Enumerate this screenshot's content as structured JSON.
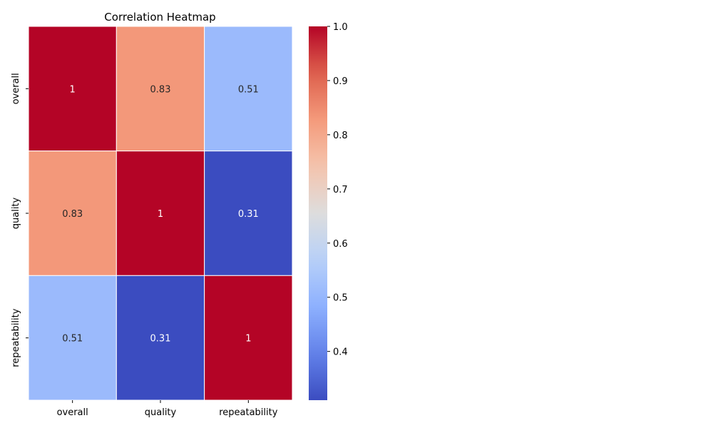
{
  "chart_data": {
    "type": "heatmap",
    "title": "Correlation Heatmap",
    "xlabel": "",
    "ylabel": "",
    "rows": [
      "overall",
      "quality",
      "repeatability"
    ],
    "columns": [
      "overall",
      "quality",
      "repeatability"
    ],
    "values": [
      [
        1,
        0.83,
        0.51
      ],
      [
        0.83,
        1,
        0.31
      ],
      [
        0.51,
        0.31,
        1
      ]
    ],
    "cell_labels": [
      [
        "1",
        "0.83",
        "0.51"
      ],
      [
        "0.83",
        "1",
        "0.31"
      ],
      [
        "0.51",
        "0.31",
        "1"
      ]
    ],
    "colormap": "coolwarm",
    "colorbar": {
      "range": [
        0.31,
        1.0
      ],
      "ticks": [
        0.4,
        0.5,
        0.6,
        0.7,
        0.8,
        0.9,
        1.0
      ],
      "tick_labels": [
        "0.4",
        "0.5",
        "0.6",
        "0.7",
        "0.8",
        "0.9",
        "1.0"
      ]
    },
    "grid": false,
    "cell_border_color": "#ffffff"
  }
}
